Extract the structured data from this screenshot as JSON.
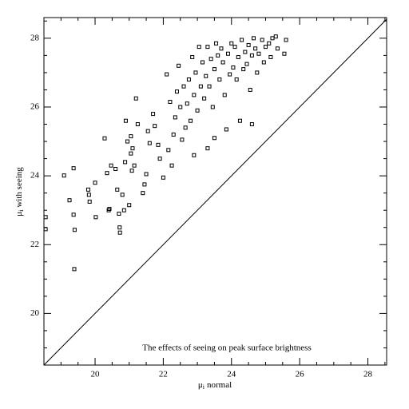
{
  "chart_data": {
    "type": "scatter",
    "annotation": "The effects of seeing on peak surface brightness",
    "xlabel": {
      "symbol": "μ",
      "subscript": "i",
      "text": "normal"
    },
    "ylabel": {
      "symbol": "μ",
      "subscript": "i",
      "text": "with seeing"
    },
    "xlim": [
      18.5,
      28.55
    ],
    "ylim": [
      18.5,
      28.6
    ],
    "xticks": [
      20,
      22,
      24,
      26,
      28
    ],
    "yticks": [
      20,
      22,
      24,
      26,
      28
    ],
    "xminorticks": [
      19,
      19.5,
      20.5,
      21,
      21.5,
      22.5,
      23,
      23.5,
      24.5,
      25,
      25.5,
      26.5,
      27,
      27.5,
      28.5
    ],
    "yminorticks": [
      19,
      19.5,
      20.5,
      21,
      21.5,
      22.5,
      23,
      23.5,
      24.5,
      25,
      25.5,
      26.5,
      27,
      27.5,
      28.5
    ],
    "color": "#000000",
    "x": [
      18.55,
      18.55,
      19.39,
      19.4,
      19.09,
      19.37,
      19.25,
      19.37,
      19.8,
      19.82,
      19.84,
      20.0,
      20.02,
      20.28,
      20.35,
      20.42,
      20.47,
      20.4,
      20.6,
      20.65,
      20.7,
      20.72,
      20.73,
      20.8,
      20.85,
      20.9,
      20.88,
      20.95,
      21.0,
      21.05,
      21.05,
      21.08,
      21.1,
      21.15,
      21.2,
      21.25,
      21.4,
      21.45,
      21.5,
      21.55,
      21.6,
      21.7,
      21.75,
      21.85,
      21.9,
      22.0,
      22.1,
      22.15,
      22.2,
      22.25,
      22.3,
      22.35,
      22.4,
      22.45,
      22.5,
      22.55,
      22.6,
      22.65,
      22.7,
      22.75,
      22.8,
      22.85,
      22.9,
      22.95,
      23.0,
      23.05,
      23.1,
      23.15,
      23.2,
      23.25,
      23.3,
      23.35,
      23.4,
      23.45,
      23.5,
      23.55,
      23.6,
      23.65,
      23.7,
      23.75,
      23.8,
      23.85,
      23.9,
      23.95,
      24.0,
      24.05,
      24.1,
      24.15,
      24.2,
      24.25,
      24.3,
      24.35,
      24.4,
      24.45,
      24.5,
      24.55,
      24.6,
      24.65,
      24.7,
      24.75,
      24.8,
      24.9,
      24.95,
      25.0,
      25.1,
      25.15,
      25.2,
      25.3,
      25.35,
      25.55,
      25.6,
      23.5,
      22.9,
      23.3,
      24.6
    ],
    "values": [
      22.8,
      22.45,
      21.29,
      22.43,
      24.01,
      24.22,
      23.29,
      22.87,
      23.6,
      23.45,
      23.25,
      23.8,
      22.8,
      25.09,
      24.08,
      23.04,
      24.3,
      23.0,
      24.2,
      23.6,
      22.9,
      22.5,
      22.35,
      23.45,
      23.0,
      25.6,
      24.4,
      25.0,
      23.15,
      25.15,
      24.65,
      24.15,
      24.8,
      24.3,
      26.25,
      25.5,
      23.5,
      23.75,
      24.05,
      25.3,
      24.95,
      25.8,
      25.45,
      24.9,
      24.5,
      23.95,
      26.95,
      24.75,
      26.15,
      24.3,
      25.2,
      25.7,
      26.45,
      27.2,
      26.0,
      25.05,
      26.6,
      25.4,
      26.1,
      26.8,
      25.6,
      27.45,
      26.35,
      27.0,
      25.9,
      27.75,
      26.6,
      27.3,
      26.25,
      26.9,
      27.75,
      26.6,
      27.4,
      26.0,
      27.1,
      27.85,
      27.5,
      26.8,
      27.7,
      27.3,
      26.35,
      25.35,
      27.55,
      26.95,
      27.85,
      27.15,
      27.75,
      26.8,
      27.45,
      25.6,
      27.95,
      27.1,
      27.6,
      27.25,
      27.8,
      26.5,
      27.5,
      28.0,
      27.7,
      27.0,
      27.55,
      27.95,
      27.3,
      27.75,
      27.85,
      27.45,
      28.0,
      28.05,
      27.7,
      27.55,
      27.95,
      25.1,
      24.6,
      24.8,
      25.5
    ]
  }
}
